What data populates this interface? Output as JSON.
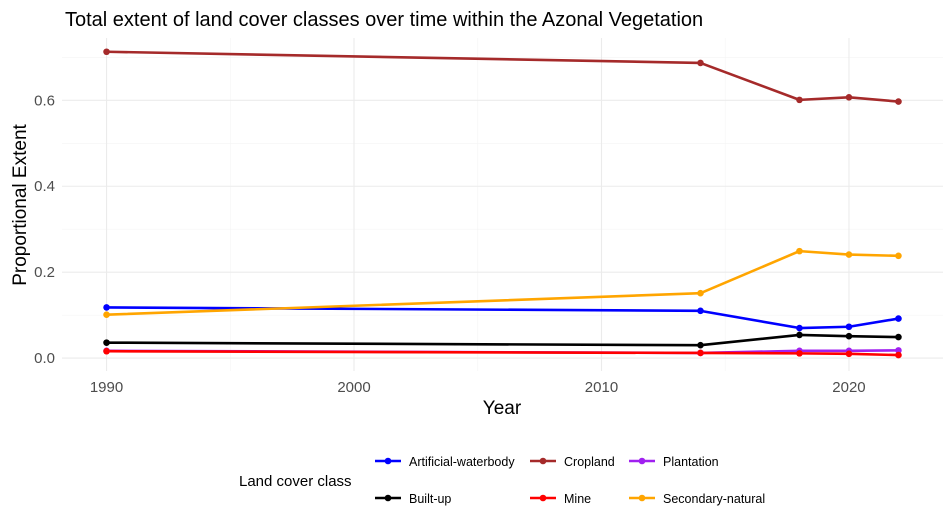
{
  "chart_data": {
    "type": "line",
    "title": "Total extent of land cover classes over time within the Azonal Vegetation",
    "xlabel": "Year",
    "ylabel": "Proportional Extent",
    "x": [
      1990,
      2014,
      2018,
      2020,
      2022
    ],
    "xlim": [
      1988.2,
      2023.8
    ],
    "ylim": [
      -0.03,
      0.745
    ],
    "xticks": [
      1990,
      2000,
      2010,
      2020
    ],
    "yticks": [
      0.0,
      0.2,
      0.4,
      0.6
    ],
    "ytick_labels": [
      "0.0",
      "0.2",
      "0.4",
      "0.6"
    ],
    "grid": true,
    "legend": {
      "title": "Land cover class",
      "position": "bottom",
      "entries": [
        "Artificial-waterbody",
        "Cropland",
        "Plantation",
        "Built-up",
        "Mine",
        "Secondary-natural"
      ]
    },
    "series": [
      {
        "name": "Artificial-waterbody",
        "color": "#0000ff",
        "values": [
          0.118,
          0.11,
          0.07,
          0.073,
          0.092
        ]
      },
      {
        "name": "Cropland",
        "color": "#a52a2a",
        "values": [
          0.713,
          0.687,
          0.601,
          0.607,
          0.597
        ]
      },
      {
        "name": "Plantation",
        "color": "#a020f0",
        "values": [
          0.017,
          0.012,
          0.017,
          0.017,
          0.018
        ]
      },
      {
        "name": "Built-up",
        "color": "#000000",
        "values": [
          0.036,
          0.03,
          0.054,
          0.051,
          0.049
        ]
      },
      {
        "name": "Mine",
        "color": "#ff0000",
        "values": [
          0.016,
          0.012,
          0.011,
          0.01,
          0.007
        ]
      },
      {
        "name": "Secondary-natural",
        "color": "#ffa500",
        "values": [
          0.101,
          0.151,
          0.249,
          0.241,
          0.238
        ]
      }
    ]
  }
}
